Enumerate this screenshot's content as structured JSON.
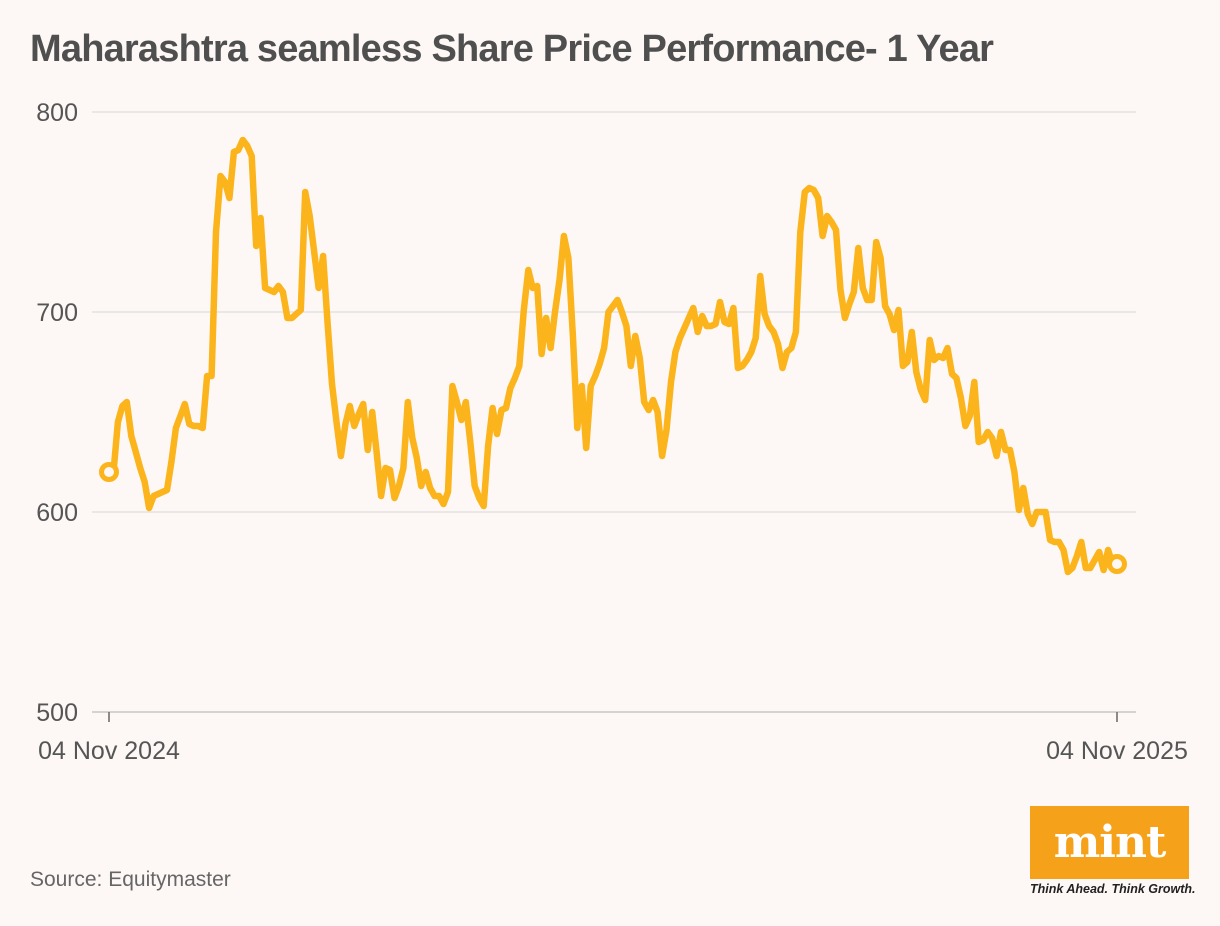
{
  "title": "Maharashtra seamless Share Price Performance- 1 Year",
  "source": "Source: Equitymaster",
  "logo": {
    "word": "mint",
    "tagline": "Think Ahead. Think Growth.",
    "color": "#f5a21a"
  },
  "chart_data": {
    "type": "line",
    "x_start_label": "04 Nov 2024",
    "x_end_label": "04 Nov 2025",
    "ylim": [
      500,
      800
    ],
    "yticks": [
      500,
      600,
      700,
      800
    ],
    "grid": true,
    "line_color": "#fbb41b",
    "series": [
      {
        "values": [
          620,
          620,
          645,
          653,
          655,
          638,
          630,
          622,
          615,
          602,
          608,
          609,
          610,
          611,
          625,
          642,
          648,
          654,
          644,
          643,
          643,
          642,
          668,
          668,
          740,
          768,
          765,
          757,
          780,
          781,
          786,
          783,
          778,
          733,
          747,
          712,
          711,
          710,
          713,
          710,
          697,
          697,
          699,
          701,
          760,
          748,
          730,
          712,
          728,
          695,
          664,
          645,
          628,
          644,
          653,
          643,
          649,
          654,
          631,
          650,
          630,
          608,
          622,
          621,
          607,
          613,
          622,
          655,
          637,
          627,
          613,
          620,
          612,
          608,
          608,
          604,
          610,
          663,
          655,
          646,
          655,
          635,
          613,
          607,
          603,
          633,
          652,
          639,
          651,
          652,
          662,
          667,
          673,
          701,
          721,
          712,
          713,
          679,
          697,
          682,
          700,
          716,
          738,
          727,
          688,
          642,
          663,
          632,
          663,
          668,
          674,
          682,
          700,
          703,
          706,
          700,
          693,
          673,
          688,
          677,
          655,
          651,
          656,
          650,
          628,
          641,
          665,
          680,
          687,
          692,
          697,
          702,
          690,
          698,
          693,
          693,
          694,
          705,
          695,
          694,
          702,
          672,
          673,
          676,
          680,
          687,
          718,
          699,
          693,
          690,
          684,
          672,
          680,
          682,
          690,
          740,
          760,
          762,
          761,
          757,
          738,
          748,
          745,
          741,
          711,
          697,
          704,
          710,
          732,
          712,
          706,
          706,
          735,
          727,
          703,
          699,
          691,
          701,
          673,
          675,
          690,
          670,
          661,
          656,
          686,
          676,
          678,
          677,
          682,
          669,
          667,
          657,
          643,
          648,
          665,
          635,
          636,
          640,
          637,
          628,
          640,
          631,
          631,
          620,
          601,
          612,
          599,
          594,
          600,
          600,
          600,
          586,
          585,
          585,
          581,
          570,
          572,
          578,
          585,
          572,
          572,
          576,
          580,
          571,
          581,
          574,
          574
        ]
      }
    ]
  }
}
